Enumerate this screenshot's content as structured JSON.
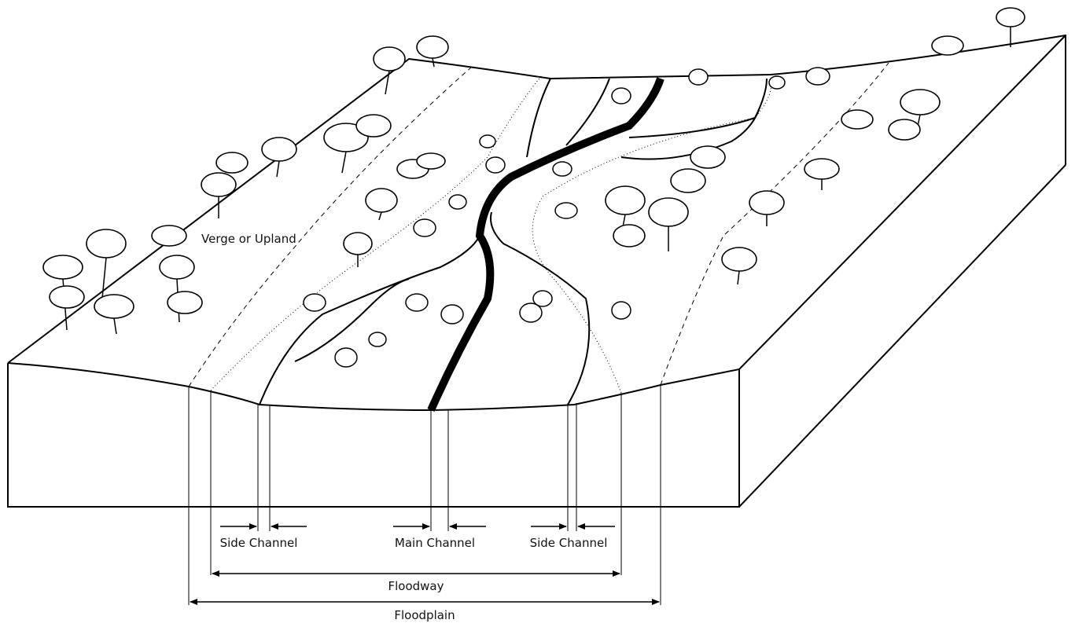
{
  "labels": {
    "upland": "Verge or Upland",
    "side_channel_left": "Side Channel",
    "main_channel": "Main Channel",
    "side_channel_right": "Side Channel",
    "floodway": "Floodway",
    "floodplain": "Floodplain"
  }
}
